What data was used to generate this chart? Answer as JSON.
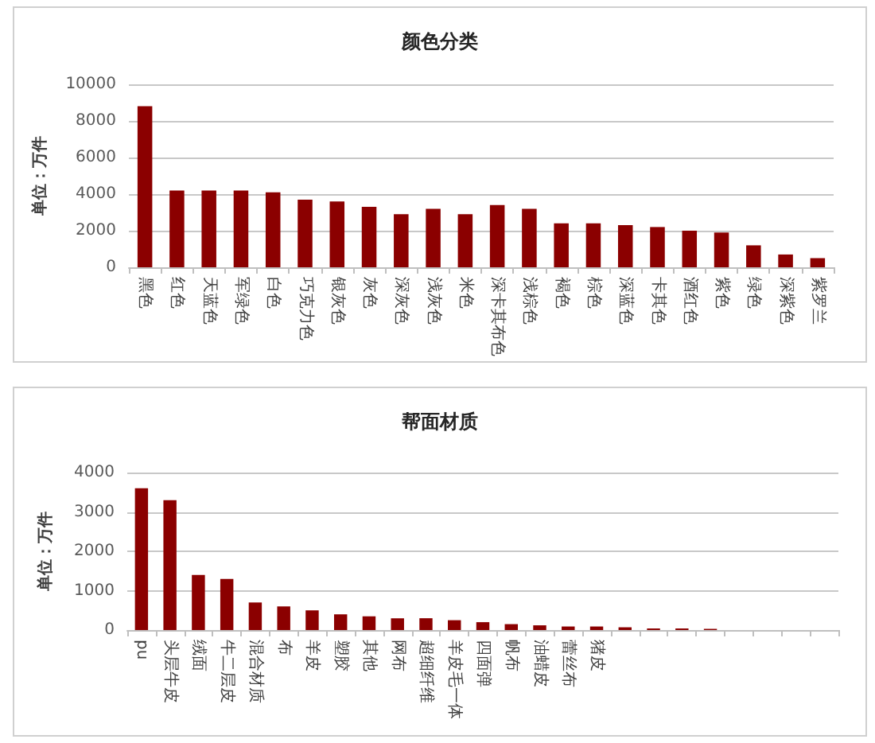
{
  "chart_data": [
    {
      "type": "bar",
      "title": "颜色分类",
      "ylabel": "单位：万件",
      "categories": [
        "黑色",
        "红色",
        "天蓝色",
        "军绿色",
        "白色",
        "巧克力色",
        "银灰色",
        "灰色",
        "深灰色",
        "浅灰色",
        "米色",
        "深卡其布色",
        "浅棕色",
        "褐色",
        "棕色",
        "深蓝色",
        "卡其色",
        "酒红色",
        "紫色",
        "绿色",
        "深紫色",
        "紫罗兰"
      ],
      "values": [
        8800,
        4200,
        4200,
        4200,
        4100,
        3700,
        3600,
        3300,
        2900,
        3200,
        2900,
        3400,
        3200,
        2400,
        2400,
        2300,
        2200,
        2000,
        1900,
        1200,
        700,
        500
      ],
      "color": "#8b0000",
      "ylim": [
        0,
        10000
      ],
      "yticks": [
        0,
        2000,
        4000,
        6000,
        8000,
        10000
      ],
      "grid": "y"
    },
    {
      "type": "bar",
      "title": "帮面材质",
      "ylabel": "单位：万件",
      "categories": [
        "pu",
        "头层牛皮",
        "绒面",
        "牛二层皮",
        "混合材质",
        "布",
        "羊皮",
        "塑胶",
        "其他",
        "网布",
        "超细纤维",
        "羊皮毛一体",
        "四面弹",
        "帆布",
        "油蜡皮",
        "蕾丝布",
        "猪皮",
        null,
        null,
        null,
        null,
        null,
        null,
        null,
        null
      ],
      "values": [
        3600,
        3300,
        1400,
        1300,
        700,
        600,
        500,
        400,
        350,
        300,
        300,
        250,
        200,
        150,
        120,
        90,
        90,
        70,
        40,
        40,
        30,
        null,
        null,
        null,
        null
      ],
      "color": "#8b0000",
      "ylim": [
        0,
        4000
      ],
      "yticks": [
        0,
        1000,
        2000,
        3000,
        4000
      ],
      "grid": "y"
    }
  ]
}
